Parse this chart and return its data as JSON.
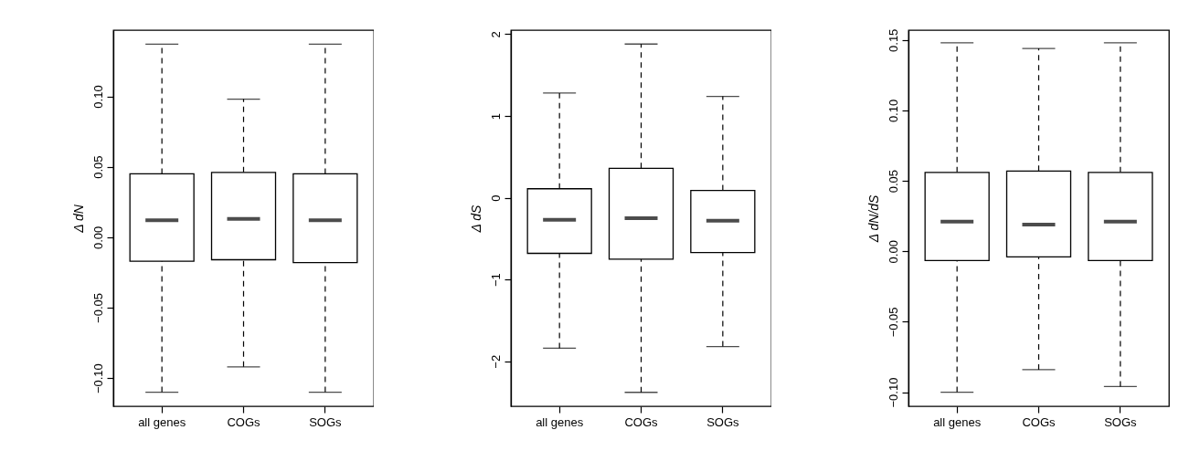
{
  "chart_data": [
    {
      "type": "box",
      "ylabel": "Δ dN",
      "categories": [
        "all genes",
        "COGs",
        "SOGs"
      ],
      "ylim": [
        -0.12,
        0.147
      ],
      "yticks": [
        {
          "value": -0.1,
          "label": "−0.10"
        },
        {
          "value": -0.05,
          "label": "−0.05"
        },
        {
          "value": 0,
          "label": "0.00"
        },
        0.05,
        {
          "value": 0.1,
          "label": "0.10"
        }
      ],
      "grid": false,
      "boxes": [
        {
          "low": -0.11,
          "q1": -0.017,
          "median": 0.012,
          "q3": 0.045,
          "high": 0.137
        },
        {
          "low": -0.092,
          "q1": -0.016,
          "median": 0.013,
          "q3": 0.046,
          "high": 0.098
        },
        {
          "low": -0.11,
          "q1": -0.018,
          "median": 0.012,
          "q3": 0.045,
          "high": 0.137
        }
      ]
    },
    {
      "type": "box",
      "ylabel": "Δ dS",
      "categories": [
        "all genes",
        "COGs",
        "SOGs"
      ],
      "ylim": [
        -2.55,
        2.05
      ],
      "yticks": [
        {
          "value": -2,
          "label": "−2"
        },
        {
          "value": -1,
          "label": "−1"
        },
        0,
        1,
        2
      ],
      "grid": false,
      "boxes": [
        {
          "low": -1.84,
          "q1": -0.68,
          "median": -0.27,
          "q3": 0.11,
          "high": 1.28
        },
        {
          "low": -2.38,
          "q1": -0.75,
          "median": -0.25,
          "q3": 0.36,
          "high": 1.88
        },
        {
          "low": -1.82,
          "q1": -0.67,
          "median": -0.28,
          "q3": 0.09,
          "high": 1.24
        }
      ]
    },
    {
      "type": "box",
      "ylabel": "Δ dN/dS",
      "categories": [
        "all genes",
        "COGs",
        "SOGs"
      ],
      "ylim": [
        -0.11,
        0.157
      ],
      "yticks": [
        {
          "value": -0.1,
          "label": "−0.10"
        },
        {
          "value": -0.05,
          "label": "−0.05"
        },
        {
          "value": 0,
          "label": "0.00"
        },
        0.05,
        {
          "value": 0.1,
          "label": "0.10"
        },
        0.15
      ],
      "grid": false,
      "boxes": [
        {
          "low": -0.1,
          "q1": -0.0065,
          "median": 0.021,
          "q3": 0.056,
          "high": 0.148
        },
        {
          "low": -0.084,
          "q1": -0.004,
          "median": 0.019,
          "q3": 0.057,
          "high": 0.144
        },
        {
          "low": -0.096,
          "q1": -0.0065,
          "median": 0.021,
          "q3": 0.056,
          "high": 0.148
        }
      ]
    }
  ]
}
